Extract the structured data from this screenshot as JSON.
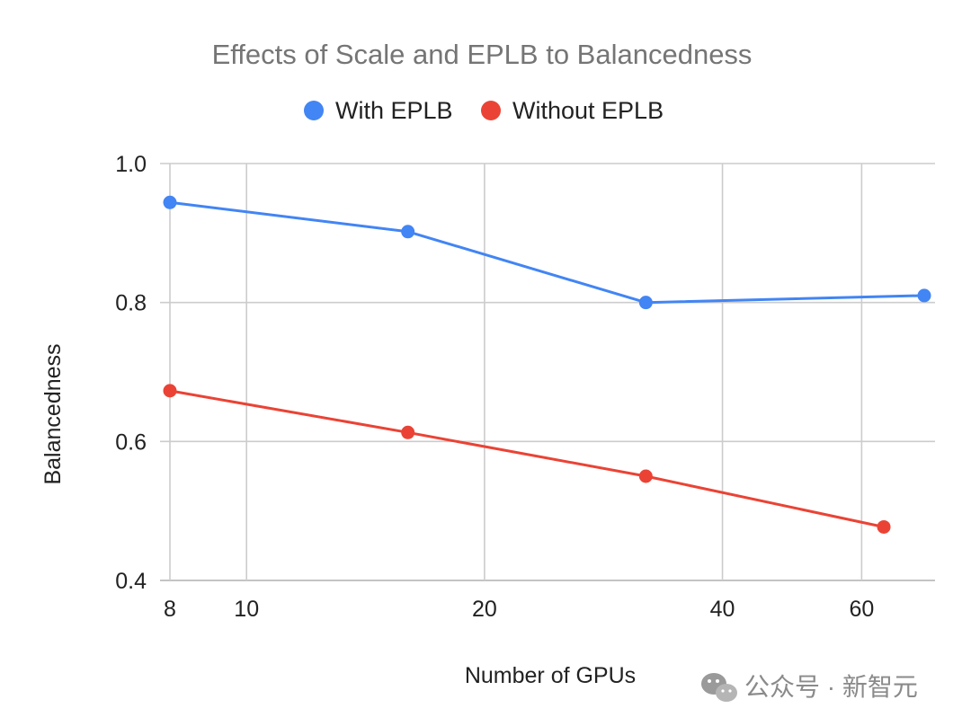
{
  "chart_data": {
    "type": "line",
    "title": "Effects of Scale and EPLB to Balancedness",
    "xlabel": "Number of GPUs",
    "ylabel": "Balancedness",
    "x_scale": "log",
    "xlim": [
      8,
      72
    ],
    "ylim": [
      0.4,
      1.0
    ],
    "x_ticks": [
      8,
      10,
      20,
      40,
      60
    ],
    "x_tick_labels": [
      "8",
      "10",
      "20",
      "40",
      "60"
    ],
    "y_ticks": [
      0.4,
      0.6,
      0.8,
      1.0
    ],
    "y_tick_labels": [
      "0.4",
      "0.6",
      "0.8",
      "1.0"
    ],
    "grid": true,
    "legend_position": "top",
    "series": [
      {
        "name": "With EPLB",
        "color": "#4285F4",
        "x": [
          8,
          16,
          32,
          72
        ],
        "y": [
          0.944,
          0.902,
          0.8,
          0.81
        ]
      },
      {
        "name": "Without EPLB",
        "color": "#EA4335",
        "x": [
          8,
          16,
          32,
          64
        ],
        "y": [
          0.673,
          0.613,
          0.55,
          0.477
        ]
      }
    ]
  },
  "watermark": {
    "text": "公众号 · 新智元",
    "icon": "wechat-icon"
  }
}
